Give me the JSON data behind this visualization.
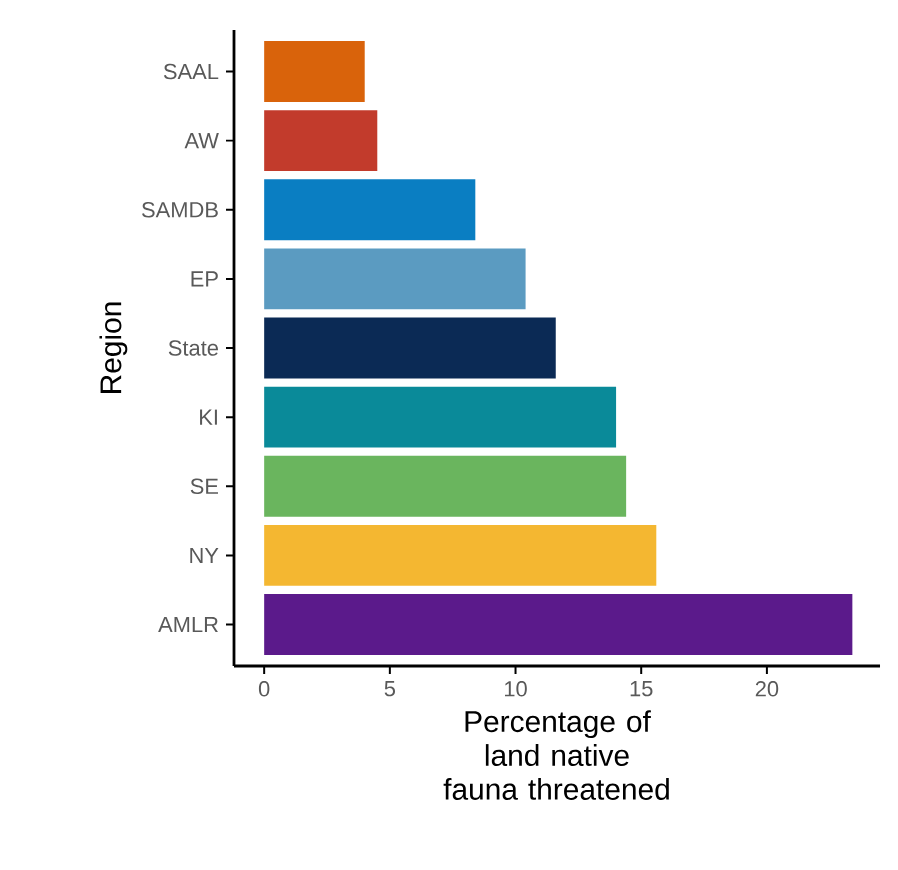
{
  "chart_data": {
    "type": "bar",
    "orientation": "horizontal",
    "xlabel": "Percentage of land native fauna threatened",
    "ylabel": "Region",
    "categories": [
      "SAAL",
      "AW",
      "SAMDB",
      "EP",
      "State",
      "KI",
      "SE",
      "NY",
      "AMLR"
    ],
    "values": [
      4.0,
      4.5,
      8.4,
      10.4,
      11.6,
      14.0,
      14.4,
      15.6,
      23.4
    ],
    "colors": [
      "#d9630b",
      "#c23b2c",
      "#0a7ec2",
      "#5b9bc1",
      "#0b2a55",
      "#0a8a99",
      "#6ab55e",
      "#f4b731",
      "#5b1a8b"
    ],
    "xlim": [
      -1.2,
      24.5
    ],
    "xticks": [
      0,
      5,
      10,
      15,
      20
    ]
  }
}
